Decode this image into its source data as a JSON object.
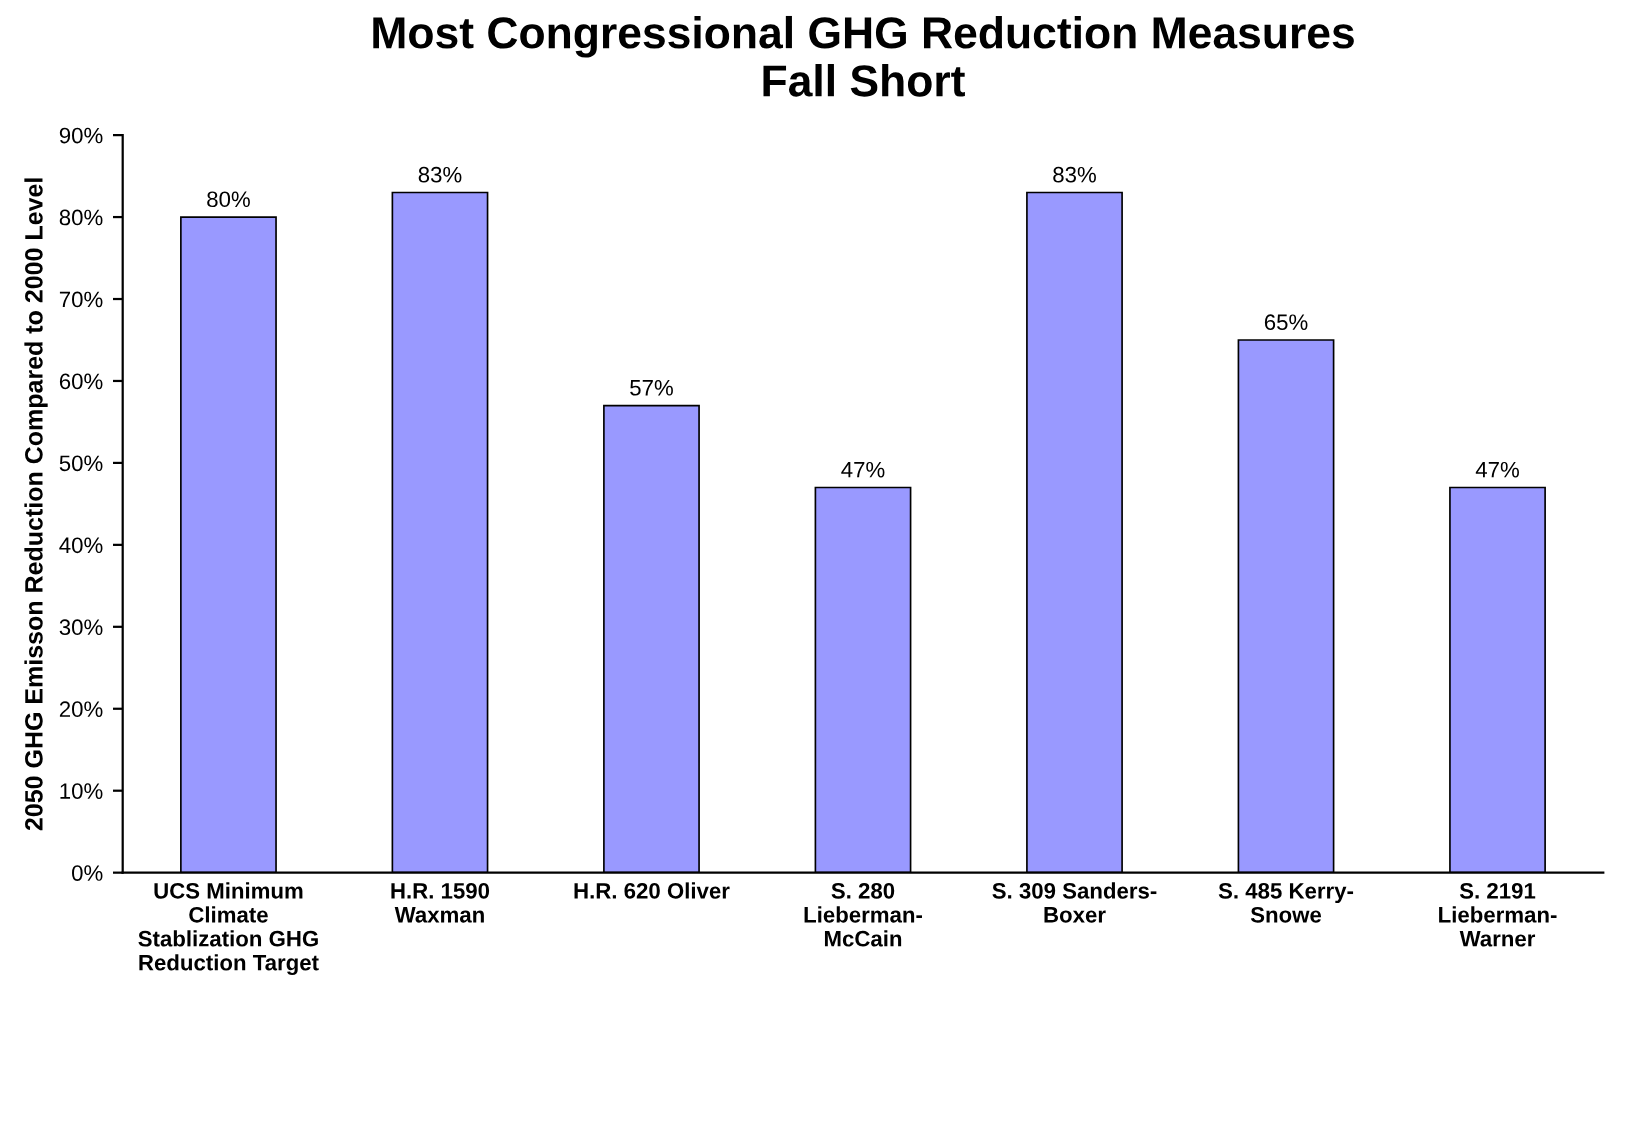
{
  "chart_data": {
    "type": "bar",
    "title": "Most Congressional GHG Reduction Measures\nFall Short",
    "ylabel": "2050 GHG Emisson Reduction Compared to 2000 Level",
    "categories": [
      "UCS Minimum\nClimate\nStablization GHG\nReduction Target",
      "H.R. 1590\nWaxman",
      "H.R. 620 Oliver",
      "S. 280\nLieberman-\nMcCain",
      "S. 309 Sanders-\nBoxer",
      "S. 485 Kerry-\nSnowe",
      "S. 2191\nLieberman-\nWarner"
    ],
    "values": [
      80,
      83,
      57,
      47,
      83,
      65,
      47
    ],
    "value_labels": [
      "80%",
      "83%",
      "57%",
      "47%",
      "83%",
      "65%",
      "47%"
    ],
    "color": "#9999ff",
    "ylim": [
      0,
      90
    ],
    "yticks": [
      {
        "value": 0,
        "label": "0%"
      },
      {
        "value": 10,
        "label": "10%"
      },
      {
        "value": 20,
        "label": "20%"
      },
      {
        "value": 30,
        "label": "30%"
      },
      {
        "value": 40,
        "label": "40%"
      },
      {
        "value": 50,
        "label": "50%"
      },
      {
        "value": 60,
        "label": "60%"
      },
      {
        "value": 70,
        "label": "70%"
      },
      {
        "value": 80,
        "label": "80%"
      },
      {
        "value": 90,
        "label": "90%"
      }
    ],
    "grid": false,
    "legend": false
  }
}
